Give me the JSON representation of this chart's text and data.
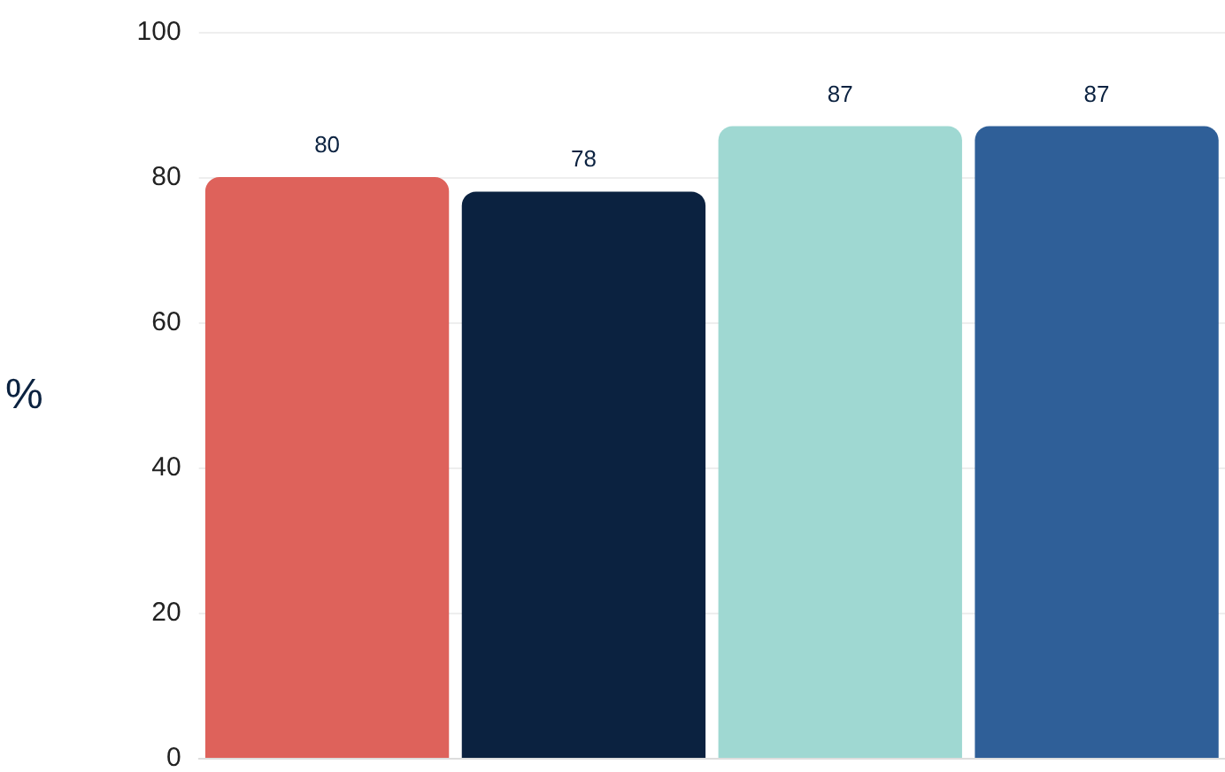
{
  "chart_data": {
    "type": "bar",
    "ylabel": "%",
    "categories": [
      null,
      null,
      null,
      null
    ],
    "values": [
      80,
      78,
      87,
      87
    ],
    "colors": [
      "#de625b",
      "#0b2240",
      "#9fd8d2",
      "#2f5f98"
    ],
    "ylim": [
      0,
      100
    ],
    "yticks": [
      0,
      20,
      40,
      60,
      80,
      100
    ],
    "grid": "y",
    "tick_labels": "y",
    "data_labels": true
  }
}
